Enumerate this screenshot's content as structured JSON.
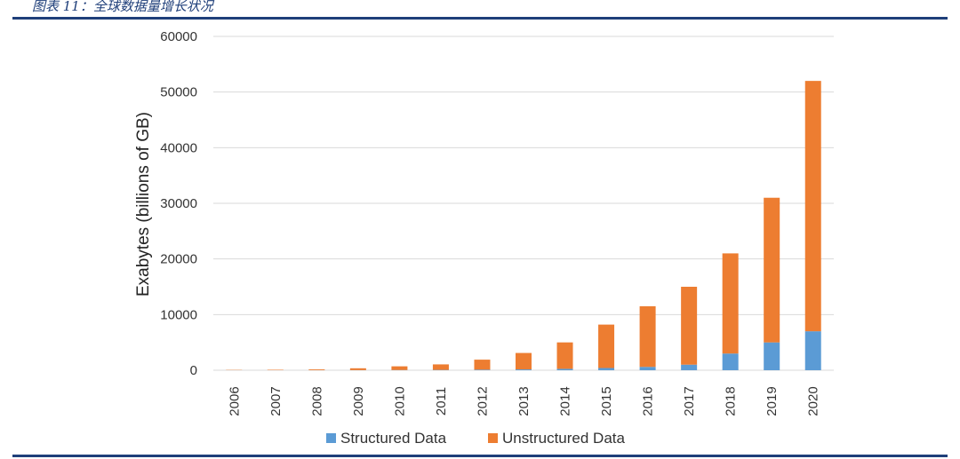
{
  "figure": {
    "title": "图表 11：全球数据量增长状况"
  },
  "colors": {
    "structured": "#5b9bd5",
    "unstructured": "#ed7d31",
    "rule": "#1f3f7a",
    "grid": "#d9d9d9"
  },
  "chart_data": {
    "type": "bar",
    "stacked": true,
    "ylabel": "Exabytes (billions of GB)",
    "xlabel": "",
    "ylim": [
      0,
      60000
    ],
    "yticks": [
      0,
      10000,
      20000,
      30000,
      40000,
      50000,
      60000
    ],
    "grid": true,
    "legend_position": "bottom",
    "categories": [
      "2006",
      "2007",
      "2008",
      "2009",
      "2010",
      "2011",
      "2012",
      "2013",
      "2014",
      "2015",
      "2016",
      "2017",
      "2018",
      "2019",
      "2020"
    ],
    "series": [
      {
        "name": "Structured Data",
        "values": [
          0,
          0,
          10,
          20,
          40,
          60,
          100,
          150,
          250,
          400,
          600,
          1000,
          3000,
          5000,
          7000
        ]
      },
      {
        "name": "Unstructured Data",
        "values": [
          50,
          80,
          140,
          330,
          660,
          990,
          1800,
          2950,
          4750,
          7800,
          10900,
          14000,
          18000,
          26000,
          45000
        ]
      }
    ]
  }
}
